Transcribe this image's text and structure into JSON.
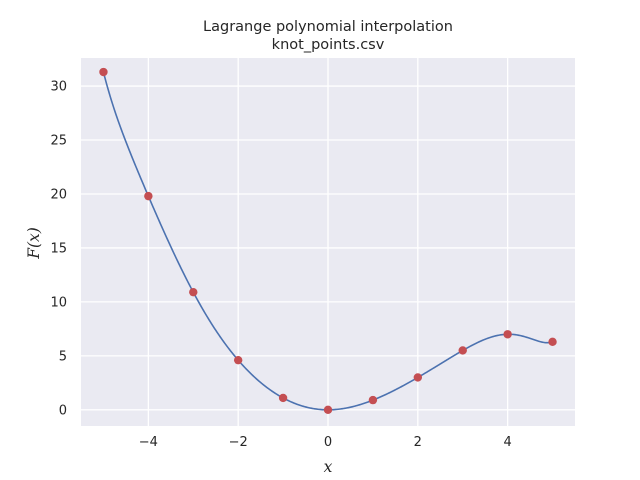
{
  "chart_data": {
    "type": "line",
    "title": "Lagrange polynomial interpolation",
    "subtitle": "knot_points.csv",
    "xlabel": "x",
    "ylabel": "F(x)",
    "xlim": [
      -5.5,
      5.5
    ],
    "ylim": [
      -1.5,
      32.6
    ],
    "xticks": [
      -4,
      -2,
      0,
      2,
      4
    ],
    "xtick_labels": [
      "−4",
      "−2",
      "0",
      "2",
      "4"
    ],
    "yticks": [
      0,
      5,
      10,
      15,
      20,
      25,
      30
    ],
    "ytick_labels": [
      "0",
      "5",
      "10",
      "15",
      "20",
      "25",
      "30"
    ],
    "grid": true,
    "background": "#eaeaf2",
    "series": [
      {
        "kind": "line",
        "color": "#4c72b0",
        "x": [
          -5,
          -4,
          -3,
          -2,
          -1,
          0,
          1,
          2,
          3,
          4,
          5
        ],
        "y": [
          31.3,
          19.8,
          10.9,
          4.6,
          1.1,
          0.0,
          0.9,
          3.0,
          5.5,
          7.0,
          6.3
        ]
      },
      {
        "kind": "scatter",
        "color": "#c44e52",
        "x": [
          -5,
          -4,
          -3,
          -2,
          -1,
          0,
          1,
          2,
          3,
          4,
          5
        ],
        "y": [
          31.3,
          19.8,
          10.9,
          4.6,
          1.1,
          0.0,
          0.9,
          3.0,
          5.5,
          7.0,
          6.3
        ]
      }
    ]
  }
}
